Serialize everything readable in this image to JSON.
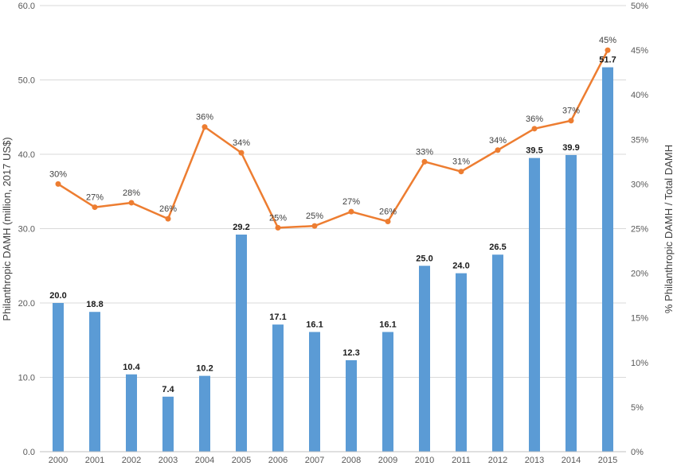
{
  "chart_data": {
    "type": "bar",
    "categories": [
      "2000",
      "2001",
      "2002",
      "2003",
      "2004",
      "2005",
      "2006",
      "2007",
      "2008",
      "2009",
      "2010",
      "2011",
      "2012",
      "2013",
      "2014",
      "2015"
    ],
    "series": [
      {
        "kind": "bar",
        "axis": "left",
        "values": [
          20.0,
          18.8,
          10.4,
          7.4,
          10.2,
          29.2,
          17.1,
          16.1,
          12.3,
          16.1,
          25.0,
          24.0,
          26.5,
          39.5,
          39.9,
          51.7
        ],
        "labels": [
          "20.0",
          "18.8",
          "10.4",
          "7.4",
          "10.2",
          "29.2",
          "17.1",
          "16.1",
          "12.3",
          "16.1",
          "25.0",
          "24.0",
          "26.5",
          "39.5",
          "39.9",
          "51.7"
        ]
      },
      {
        "kind": "line",
        "axis": "right",
        "values": [
          30,
          27.4,
          27.9,
          26.1,
          36.4,
          33.5,
          25.1,
          25.3,
          26.9,
          25.8,
          32.5,
          31.4,
          33.8,
          36.2,
          37.1,
          45.0
        ],
        "labels": [
          "30%",
          "27%",
          "28%",
          "26%",
          "36%",
          "34%",
          "25%",
          "25%",
          "27%",
          "26%",
          "33%",
          "31%",
          "34%",
          "36%",
          "37%",
          "45%"
        ]
      }
    ],
    "ylabel": "Philanthropic DAMH (million, 2017 US$)",
    "y2label": "% Philanthropic DAMH / Total DAMH",
    "ylim": [
      0,
      60
    ],
    "y2lim": [
      0,
      50
    ],
    "yticks": [
      "0.0",
      "10.0",
      "20.0",
      "30.0",
      "40.0",
      "50.0",
      "60.0"
    ],
    "y2ticks": [
      "0%",
      "5%",
      "10%",
      "15%",
      "20%",
      "25%",
      "30%",
      "35%",
      "40%",
      "45%",
      "50%"
    ],
    "grid": true,
    "colors": {
      "bar": "#5b9bd5",
      "line": "#ed7d31",
      "grid": "#d9d9d9"
    }
  }
}
